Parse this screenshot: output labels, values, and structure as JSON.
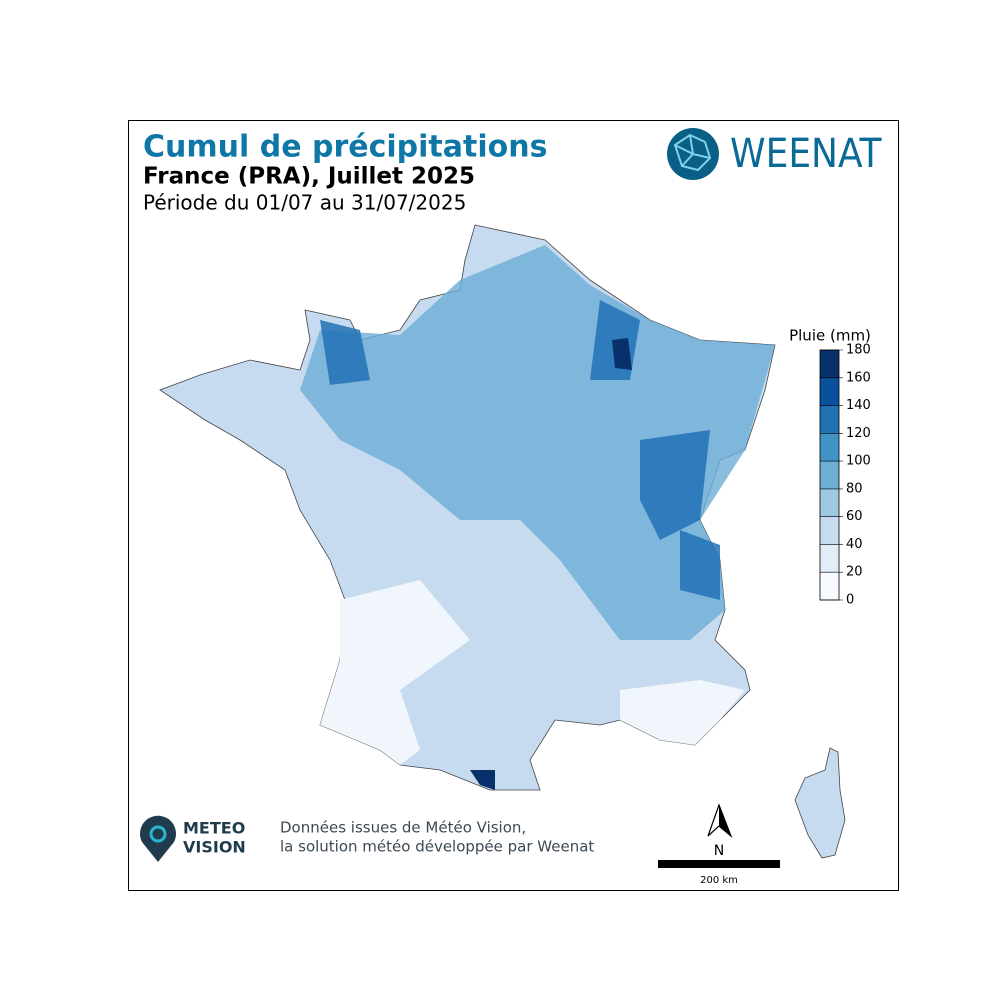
{
  "header": {
    "title": "Cumul de précipitations",
    "subtitle": "France (PRA), Juillet 2025",
    "period": "Période du 01/07 au 31/07/2025",
    "brand": "WEENAT"
  },
  "colorbar": {
    "title": "Pluie (mm)",
    "ticks": [
      0,
      20,
      40,
      60,
      80,
      100,
      120,
      140,
      160,
      180
    ],
    "colors": [
      "#f7fbff",
      "#e1edf8",
      "#c6dbef",
      "#9ecae1",
      "#6baed6",
      "#4292c6",
      "#2171b5",
      "#08519c",
      "#08306b"
    ]
  },
  "footer": {
    "logo_top": "METEO",
    "logo_bottom": "VISION",
    "credit_line1": "Données issues de Météo Vision,",
    "credit_line2": "la solution météo développée par Weenat",
    "north": "N",
    "scale": "200 km"
  }
}
